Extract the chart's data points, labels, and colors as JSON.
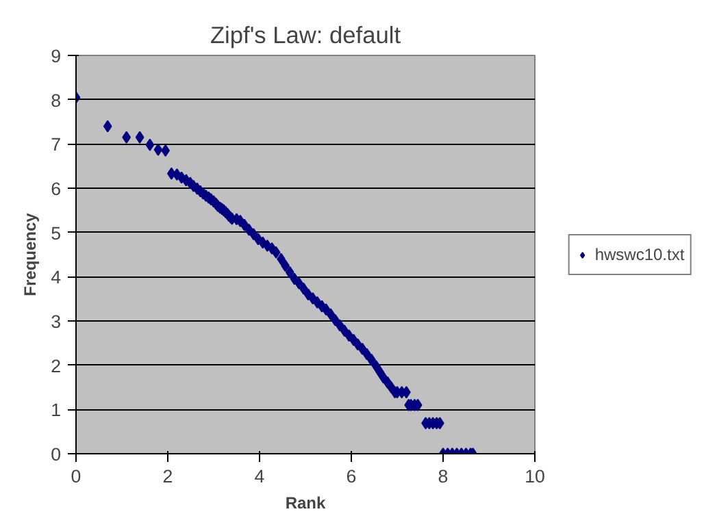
{
  "chart_data": {
    "type": "scatter",
    "title": "Zipf's Law: default",
    "xlabel": "Rank",
    "ylabel": "Frequency",
    "xlim": [
      0,
      10
    ],
    "xticks": [
      0,
      2,
      4,
      6,
      8,
      10
    ],
    "ylim": [
      0,
      9
    ],
    "yticks": [
      0,
      1,
      2,
      3,
      4,
      5,
      6,
      7,
      8,
      9
    ],
    "grid": "y",
    "legend": "right",
    "marker": "diamond",
    "series": [
      {
        "name": "hwswc10.txt",
        "color": "#000080",
        "x": [
          0,
          0.69,
          1.1,
          1.39,
          1.61,
          1.79,
          1.95,
          2.08,
          2.2,
          2.3,
          2.4,
          2.49,
          2.56,
          2.64,
          2.71,
          2.77,
          2.83,
          2.89,
          2.94,
          3.0,
          3.05,
          3.09,
          3.14,
          3.18,
          3.22,
          3.26,
          3.3,
          3.33,
          3.37,
          3.4,
          3.5,
          3.58,
          3.67,
          3.77,
          3.87,
          3.97,
          4.07,
          4.17,
          4.27,
          4.36,
          4.47,
          4.56,
          4.66,
          4.76,
          4.86,
          4.96,
          5.06,
          5.16,
          5.26,
          5.36,
          5.45,
          5.55,
          5.65,
          5.75,
          5.85,
          5.95,
          6.05,
          6.14,
          6.24,
          6.34,
          6.44,
          6.54,
          6.62,
          6.7,
          6.79,
          6.87,
          6.95,
          7.0,
          7.1,
          7.2,
          7.25,
          7.3,
          7.38,
          7.45,
          7.62,
          7.7,
          7.78,
          7.86,
          7.93,
          8.0,
          8.1,
          8.2,
          8.3,
          8.4,
          8.5,
          8.6,
          8.65
        ],
        "values": [
          8.05,
          7.4,
          7.15,
          7.15,
          6.98,
          6.87,
          6.85,
          6.33,
          6.31,
          6.24,
          6.18,
          6.12,
          6.05,
          5.99,
          5.93,
          5.88,
          5.83,
          5.79,
          5.75,
          5.7,
          5.65,
          5.6,
          5.56,
          5.53,
          5.5,
          5.46,
          5.42,
          5.38,
          5.34,
          5.31,
          5.3,
          5.26,
          5.17,
          5.06,
          4.96,
          4.85,
          4.77,
          4.7,
          4.64,
          4.55,
          4.4,
          4.25,
          4.1,
          3.95,
          3.85,
          3.73,
          3.6,
          3.51,
          3.42,
          3.33,
          3.26,
          3.15,
          3.02,
          2.9,
          2.78,
          2.67,
          2.57,
          2.47,
          2.37,
          2.25,
          2.12,
          1.98,
          1.85,
          1.72,
          1.61,
          1.5,
          1.39,
          1.39,
          1.39,
          1.39,
          1.1,
          1.1,
          1.1,
          1.1,
          0.69,
          0.69,
          0.69,
          0.69,
          0.69,
          0,
          0,
          0,
          0,
          0,
          0,
          0,
          0
        ]
      }
    ]
  }
}
